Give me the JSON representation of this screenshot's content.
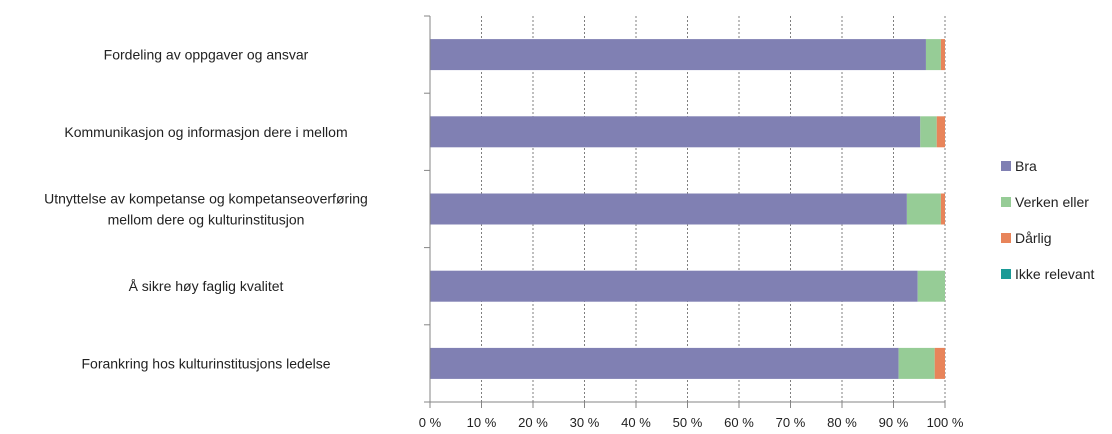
{
  "chart_data": {
    "type": "bar",
    "orientation": "horizontal",
    "stacked": "percent",
    "categories": [
      [
        "Fordeling av oppgaver og ansvar"
      ],
      [
        "Kommunikasjon og informasjon dere i mellom"
      ],
      [
        "Utnyttelse av kompetanse og kompetanseoverføring",
        "mellom dere og kulturinstitusjon"
      ],
      [
        "Å sikre høy faglig kvalitet"
      ],
      [
        "Forankring hos kulturinstitusjons ledelse"
      ]
    ],
    "series": [
      {
        "name": "Bra",
        "color": "#8080b3",
        "values": [
          96.3,
          95.2,
          92.6,
          94.7,
          91.0
        ]
      },
      {
        "name": "Verken eller",
        "color": "#96cc96",
        "values": [
          2.9,
          3.2,
          6.6,
          5.3,
          7.0
        ]
      },
      {
        "name": "Dårlig",
        "color": "#e8845a",
        "values": [
          0.8,
          1.6,
          0.8,
          0.0,
          2.0
        ]
      },
      {
        "name": "Ikke relevant",
        "color": "#1a9a96",
        "values": [
          0,
          0,
          0,
          0,
          0
        ]
      }
    ],
    "xlim": [
      0,
      100
    ],
    "xticks": [
      "0 %",
      "10 %",
      "20 %",
      "30 %",
      "40 %",
      "50 %",
      "60 %",
      "70 %",
      "80 %",
      "90 %",
      "100 %"
    ],
    "grid": "vertical-dotted",
    "legend_position": "right"
  }
}
